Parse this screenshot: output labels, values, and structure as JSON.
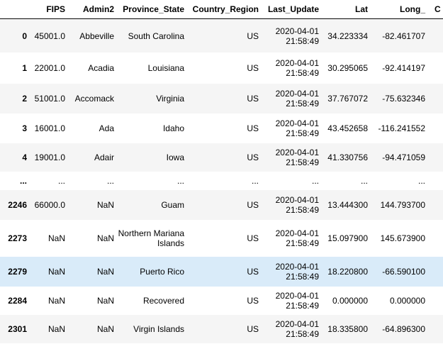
{
  "table": {
    "columns": [
      {
        "key": "fips",
        "label": "FIPS"
      },
      {
        "key": "admin2",
        "label": "Admin2"
      },
      {
        "key": "province",
        "label": "Province_State"
      },
      {
        "key": "country",
        "label": "Country_Region"
      },
      {
        "key": "update",
        "label": "Last_Update"
      },
      {
        "key": "lat",
        "label": "Lat"
      },
      {
        "key": "long",
        "label": "Long_"
      }
    ],
    "clipped_header": "C",
    "rows": [
      {
        "index": "0",
        "fips": "45001.0",
        "admin2": "Abbeville",
        "province": "South Carolina",
        "country": "US",
        "update": "2020-04-01 21:58:49",
        "lat": "34.223334",
        "long": "-82.461707"
      },
      {
        "index": "1",
        "fips": "22001.0",
        "admin2": "Acadia",
        "province": "Louisiana",
        "country": "US",
        "update": "2020-04-01 21:58:49",
        "lat": "30.295065",
        "long": "-92.414197"
      },
      {
        "index": "2",
        "fips": "51001.0",
        "admin2": "Accomack",
        "province": "Virginia",
        "country": "US",
        "update": "2020-04-01 21:58:49",
        "lat": "37.767072",
        "long": "-75.632346"
      },
      {
        "index": "3",
        "fips": "16001.0",
        "admin2": "Ada",
        "province": "Idaho",
        "country": "US",
        "update": "2020-04-01 21:58:49",
        "lat": "43.452658",
        "long": "-116.241552"
      },
      {
        "index": "4",
        "fips": "19001.0",
        "admin2": "Adair",
        "province": "Iowa",
        "country": "US",
        "update": "2020-04-01 21:58:49",
        "lat": "41.330756",
        "long": "-94.471059"
      },
      {
        "index": "...",
        "fips": "...",
        "admin2": "...",
        "province": "...",
        "country": "...",
        "update": "...",
        "lat": "...",
        "long": "..."
      },
      {
        "index": "2246",
        "fips": "66000.0",
        "admin2": "NaN",
        "province": "Guam",
        "country": "US",
        "update": "2020-04-01 21:58:49",
        "lat": "13.444300",
        "long": "144.793700"
      },
      {
        "index": "2273",
        "fips": "NaN",
        "admin2": "NaN",
        "province": "Northern Mariana Islands",
        "country": "US",
        "update": "2020-04-01 21:58:49",
        "lat": "15.097900",
        "long": "145.673900"
      },
      {
        "index": "2279",
        "fips": "NaN",
        "admin2": "NaN",
        "province": "Puerto Rico",
        "country": "US",
        "update": "2020-04-01 21:58:49",
        "lat": "18.220800",
        "long": "-66.590100"
      },
      {
        "index": "2284",
        "fips": "NaN",
        "admin2": "NaN",
        "province": "Recovered",
        "country": "US",
        "update": "2020-04-01 21:58:49",
        "lat": "0.000000",
        "long": "0.000000"
      },
      {
        "index": "2301",
        "fips": "NaN",
        "admin2": "NaN",
        "province": "Virgin Islands",
        "country": "US",
        "update": "2020-04-01 21:58:49",
        "lat": "18.335800",
        "long": "-64.896300"
      }
    ]
  }
}
